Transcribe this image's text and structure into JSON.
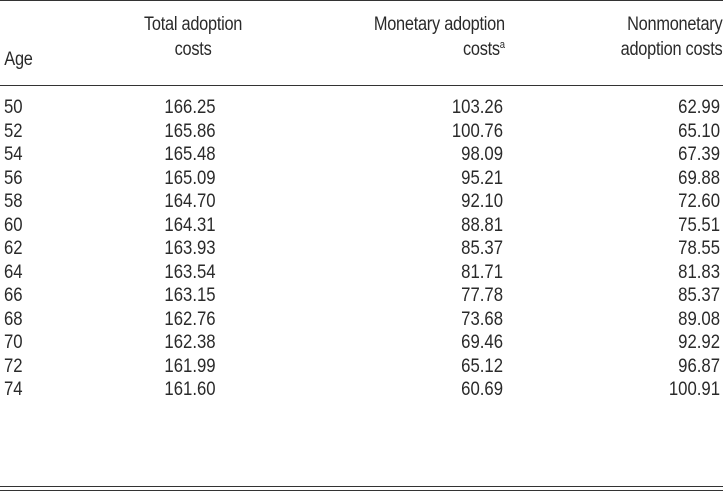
{
  "table": {
    "headers": {
      "age": "Age",
      "total_line1": "Total adoption",
      "total_line2": "costs",
      "monetary_line1": "Monetary adoption",
      "monetary_line2": "costs",
      "monetary_footnote": "a",
      "nonmonetary_line1": "Nonmonetary",
      "nonmonetary_line2": "adoption costs"
    },
    "rows": [
      {
        "age": "50",
        "total": "166.25",
        "monetary": "103.26",
        "nonmonetary": "62.99"
      },
      {
        "age": "52",
        "total": "165.86",
        "monetary": "100.76",
        "nonmonetary": "65.10"
      },
      {
        "age": "54",
        "total": "165.48",
        "monetary": "98.09",
        "nonmonetary": "67.39"
      },
      {
        "age": "56",
        "total": "165.09",
        "monetary": "95.21",
        "nonmonetary": "69.88"
      },
      {
        "age": "58",
        "total": "164.70",
        "monetary": "92.10",
        "nonmonetary": "72.60"
      },
      {
        "age": "60",
        "total": "164.31",
        "monetary": "88.81",
        "nonmonetary": "75.51"
      },
      {
        "age": "62",
        "total": "163.93",
        "monetary": "85.37",
        "nonmonetary": "78.55"
      },
      {
        "age": "64",
        "total": "163.54",
        "monetary": "81.71",
        "nonmonetary": "81.83"
      },
      {
        "age": "66",
        "total": "163.15",
        "monetary": "77.78",
        "nonmonetary": "85.37"
      },
      {
        "age": "68",
        "total": "162.76",
        "monetary": "73.68",
        "nonmonetary": "89.08"
      },
      {
        "age": "70",
        "total": "162.38",
        "monetary": "69.46",
        "nonmonetary": "92.92"
      },
      {
        "age": "72",
        "total": "161.99",
        "monetary": "65.12",
        "nonmonetary": "96.87"
      },
      {
        "age": "74",
        "total": "161.60",
        "monetary": "60.69",
        "nonmonetary": "100.91"
      }
    ]
  }
}
